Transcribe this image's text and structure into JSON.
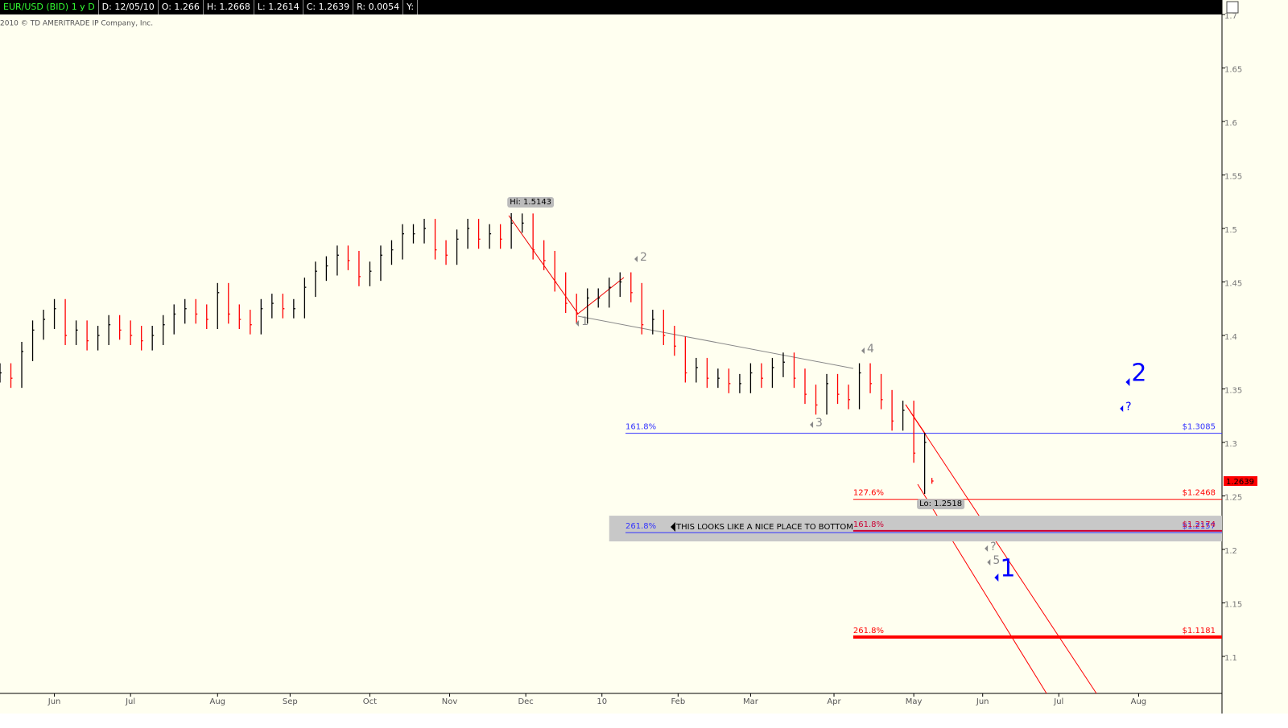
{
  "header": [
    "EUR/USD (BID) 1 y D",
    "D: 12/05/10",
    "O: 1.266",
    "H: 1.2668",
    "L: 1.2614",
    "C: 1.2639",
    "R: 0.0054",
    "Y:"
  ],
  "copyright": "2010 © TD AMERITRADE IP Company, Inc.",
  "chart_data": {
    "type": "ohlc",
    "up_color": "#000000",
    "down_color": "#ff0000",
    "x": [
      0,
      3,
      6,
      9,
      12,
      15,
      18,
      21,
      24,
      27,
      30,
      33,
      36,
      39,
      42,
      45,
      48,
      51,
      54,
      57,
      60,
      63,
      66,
      69,
      72,
      75,
      78,
      81,
      84,
      87,
      90,
      93,
      96,
      99,
      102,
      105,
      108,
      111,
      114,
      117,
      120,
      123,
      126,
      129,
      132,
      135,
      138,
      141,
      144,
      147,
      150,
      153,
      156,
      159,
      162,
      165,
      168,
      171,
      174,
      177,
      180,
      183,
      186,
      189,
      192,
      195,
      198,
      201,
      204,
      207,
      210,
      213,
      216,
      219,
      222,
      225,
      228,
      231,
      234,
      237,
      240,
      243,
      246,
      249,
      252,
      255,
      257
    ],
    "high": [
      1.374,
      1.374,
      1.394,
      1.414,
      1.424,
      1.434,
      1.434,
      1.414,
      1.414,
      1.409,
      1.419,
      1.419,
      1.414,
      1.409,
      1.409,
      1.419,
      1.429,
      1.434,
      1.434,
      1.429,
      1.449,
      1.449,
      1.429,
      1.424,
      1.434,
      1.439,
      1.439,
      1.434,
      1.454,
      1.469,
      1.474,
      1.484,
      1.484,
      1.479,
      1.469,
      1.484,
      1.489,
      1.504,
      1.504,
      1.509,
      1.509,
      1.489,
      1.499,
      1.509,
      1.509,
      1.504,
      1.504,
      1.5143,
      1.514,
      1.514,
      1.489,
      1.479,
      1.459,
      1.439,
      1.444,
      1.444,
      1.454,
      1.459,
      1.459,
      1.449,
      1.424,
      1.424,
      1.409,
      1.399,
      1.379,
      1.379,
      1.369,
      1.369,
      1.364,
      1.374,
      1.374,
      1.379,
      1.384,
      1.384,
      1.369,
      1.354,
      1.364,
      1.364,
      1.354,
      1.374,
      1.374,
      1.364,
      1.349,
      1.339,
      1.339,
      1.309,
      1.2668
    ],
    "low": [
      1.356,
      1.351,
      1.351,
      1.376,
      1.396,
      1.406,
      1.391,
      1.391,
      1.386,
      1.386,
      1.391,
      1.396,
      1.391,
      1.386,
      1.386,
      1.391,
      1.401,
      1.411,
      1.411,
      1.406,
      1.406,
      1.411,
      1.406,
      1.401,
      1.401,
      1.416,
      1.416,
      1.416,
      1.416,
      1.436,
      1.451,
      1.456,
      1.461,
      1.446,
      1.446,
      1.451,
      1.466,
      1.471,
      1.486,
      1.486,
      1.471,
      1.466,
      1.466,
      1.481,
      1.481,
      1.481,
      1.481,
      1.481,
      1.496,
      1.471,
      1.461,
      1.441,
      1.421,
      1.411,
      1.411,
      1.426,
      1.426,
      1.436,
      1.431,
      1.401,
      1.401,
      1.391,
      1.381,
      1.356,
      1.356,
      1.351,
      1.351,
      1.346,
      1.346,
      1.346,
      1.351,
      1.351,
      1.361,
      1.351,
      1.336,
      1.326,
      1.326,
      1.336,
      1.331,
      1.331,
      1.346,
      1.331,
      1.311,
      1.311,
      1.281,
      1.2518,
      1.2614
    ],
    "close": [
      1.365,
      1.36,
      1.385,
      1.405,
      1.415,
      1.425,
      1.4,
      1.405,
      1.395,
      1.4,
      1.41,
      1.405,
      1.4,
      1.395,
      1.4,
      1.41,
      1.42,
      1.425,
      1.42,
      1.415,
      1.44,
      1.42,
      1.415,
      1.41,
      1.425,
      1.43,
      1.425,
      1.425,
      1.445,
      1.46,
      1.465,
      1.475,
      1.47,
      1.455,
      1.46,
      1.475,
      1.48,
      1.495,
      1.495,
      1.5,
      1.48,
      1.475,
      1.49,
      1.5,
      1.49,
      1.495,
      1.49,
      1.505,
      1.505,
      1.48,
      1.47,
      1.45,
      1.43,
      1.42,
      1.435,
      1.435,
      1.445,
      1.45,
      1.44,
      1.41,
      1.415,
      1.4,
      1.39,
      1.365,
      1.37,
      1.36,
      1.36,
      1.355,
      1.355,
      1.365,
      1.36,
      1.37,
      1.375,
      1.36,
      1.345,
      1.335,
      1.355,
      1.345,
      1.34,
      1.365,
      1.355,
      1.34,
      1.32,
      1.33,
      1.29,
      1.3,
      1.2639
    ],
    "hi_label": "Hi: 1.5143",
    "lo_label": "Lo: 1.2518",
    "xlim": [
      0,
      337
    ],
    "ylim": [
      1.0654,
      1.7
    ],
    "yticks": [
      1.1,
      1.15,
      1.2,
      1.25,
      1.3,
      1.35,
      1.4,
      1.45,
      1.5,
      1.55,
      1.6,
      1.65,
      1.7
    ],
    "xticks": [
      {
        "value": 15,
        "label": "Jun"
      },
      {
        "value": 36,
        "label": "Jul"
      },
      {
        "value": 60,
        "label": "Aug"
      },
      {
        "value": 80,
        "label": "Sep"
      },
      {
        "value": 102,
        "label": "Oct"
      },
      {
        "value": 124,
        "label": "Nov"
      },
      {
        "value": 145,
        "label": "Dec"
      },
      {
        "value": 166,
        "label": "10"
      },
      {
        "value": 187,
        "label": "Feb"
      },
      {
        "value": 207,
        "label": "Mar"
      },
      {
        "value": 230,
        "label": "Apr"
      },
      {
        "value": 252,
        "label": "May"
      },
      {
        "value": 271,
        "label": "Jun"
      },
      {
        "value": 292,
        "label": "Jul"
      },
      {
        "value": 314,
        "label": "Aug"
      }
    ],
    "levels": [
      {
        "label": "161.8%",
        "price_label": "$1.3085",
        "value": 1.3085,
        "from": 172.5,
        "color": "#3333ff",
        "heavy": false
      },
      {
        "label": "127.6%",
        "price_label": "$1.2468",
        "value": 1.2468,
        "from": 235.3,
        "color": "#ff0000",
        "heavy": false
      },
      {
        "label": "261.8%",
        "price_label": "$1.2157",
        "value": 1.2157,
        "from": 172.5,
        "color": "#3333ff",
        "heavy": false
      },
      {
        "label": "161.8%",
        "price_label": "$1.2174",
        "value": 1.2174,
        "from": 235.3,
        "color": "#cc0033",
        "heavy": true
      },
      {
        "label": "261.8%",
        "price_label": "$1.1181",
        "value": 1.1181,
        "from": 235.3,
        "color": "#ff0000",
        "heavy": true
      }
    ],
    "band": {
      "from": 168,
      "low": 1.2075,
      "high": 1.2315,
      "note": "THIS LOOKS LIKE A NICE PLACE TO BOTTOM"
    },
    "waves": [
      {
        "text": "1",
        "x": 160.3,
        "y": 1.4113,
        "color": "#888888",
        "big": false
      },
      {
        "text": "2",
        "x": 176.5,
        "y": 1.4714,
        "color": "#888888",
        "big": false
      },
      {
        "text": "3",
        "x": 224.9,
        "y": 1.3165,
        "color": "#888888",
        "big": false
      },
      {
        "text": "4",
        "x": 239.1,
        "y": 1.3857,
        "color": "#888888",
        "big": false
      },
      {
        "text": "?",
        "x": 273.1,
        "y": 1.2008,
        "color": "#888888",
        "big": false
      },
      {
        "text": "5",
        "x": 273.8,
        "y": 1.188,
        "color": "#888888",
        "big": false
      },
      {
        "text": "1",
        "x": 275.8,
        "y": 1.1737,
        "color": "#0000ff",
        "big": true
      },
      {
        "text": "2",
        "x": 312,
        "y": 1.3564,
        "color": "#0000ff",
        "big": true
      },
      {
        "text": "?",
        "x": 310.4,
        "y": 1.3316,
        "color": "#0000ff",
        "big": false
      }
    ]
  }
}
